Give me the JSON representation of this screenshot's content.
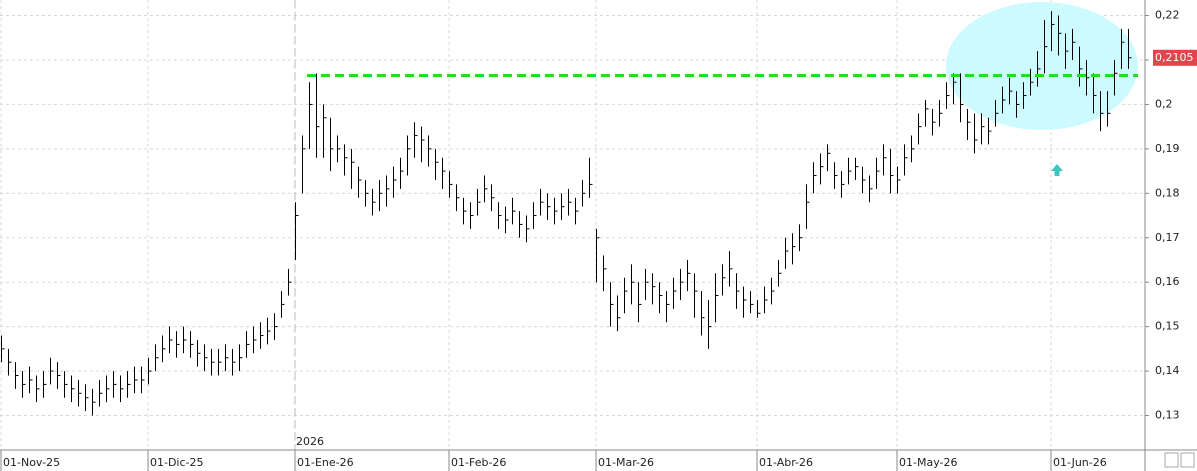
{
  "chart_data": {
    "type": "ohlc",
    "ylim": [
      0.1235,
      0.2235
    ],
    "yticks": [
      {
        "value": 0.13,
        "label": "0,13"
      },
      {
        "value": 0.14,
        "label": "0,14"
      },
      {
        "value": 0.15,
        "label": "0,15"
      },
      {
        "value": 0.16,
        "label": "0,16"
      },
      {
        "value": 0.17,
        "label": "0,17"
      },
      {
        "value": 0.18,
        "label": "0,18"
      },
      {
        "value": 0.19,
        "label": "0,19"
      },
      {
        "value": 0.2,
        "label": "0,2"
      },
      {
        "value": 0.21,
        "label": "0,21"
      },
      {
        "value": 0.22,
        "label": "0,22"
      }
    ],
    "xticks": [
      {
        "value": 0,
        "label": "01-Nov-25"
      },
      {
        "value": 21,
        "label": "01-Dic-25"
      },
      {
        "value": 42,
        "label": "01-Ene-26"
      },
      {
        "value": 64,
        "label": "01-Feb-26"
      },
      {
        "value": 85,
        "label": "01-Mar-26"
      },
      {
        "value": 108,
        "label": "01-Abr-26"
      },
      {
        "value": 128,
        "label": "01-May-26"
      },
      {
        "value": 150,
        "label": "01-Jun-26"
      }
    ],
    "year_marker": {
      "value": 42,
      "label": "2026"
    },
    "grid": true,
    "color": "#000000",
    "level_line": {
      "value": 0.2065,
      "color": "#22dd22"
    },
    "last_label": {
      "value": 0.2105,
      "label": "0,2105",
      "color": "#e0474c"
    },
    "high": [
      0.148,
      0.145,
      0.142,
      0.14,
      0.141,
      0.139,
      0.14,
      0.143,
      0.142,
      0.14,
      0.139,
      0.138,
      0.137,
      0.136,
      0.138,
      0.139,
      0.14,
      0.139,
      0.14,
      0.141,
      0.141,
      0.143,
      0.146,
      0.148,
      0.15,
      0.149,
      0.15,
      0.149,
      0.147,
      0.146,
      0.145,
      0.145,
      0.146,
      0.145,
      0.146,
      0.149,
      0.15,
      0.151,
      0.152,
      0.153,
      0.158,
      0.163,
      0.178,
      0.193,
      0.205,
      0.207,
      0.2,
      0.197,
      0.193,
      0.191,
      0.19,
      0.186,
      0.183,
      0.181,
      0.183,
      0.184,
      0.186,
      0.188,
      0.193,
      0.196,
      0.195,
      0.193,
      0.19,
      0.188,
      0.185,
      0.182,
      0.179,
      0.178,
      0.181,
      0.184,
      0.182,
      0.178,
      0.177,
      0.179,
      0.176,
      0.175,
      0.178,
      0.181,
      0.18,
      0.179,
      0.18,
      0.181,
      0.179,
      0.183,
      0.188,
      0.172,
      0.166,
      0.16,
      0.157,
      0.161,
      0.164,
      0.16,
      0.163,
      0.162,
      0.16,
      0.158,
      0.161,
      0.163,
      0.165,
      0.162,
      0.158,
      0.156,
      0.162,
      0.164,
      0.167,
      0.162,
      0.159,
      0.158,
      0.156,
      0.159,
      0.161,
      0.165,
      0.17,
      0.171,
      0.173,
      0.182,
      0.187,
      0.189,
      0.191,
      0.187,
      0.185,
      0.188,
      0.188,
      0.186,
      0.184,
      0.188,
      0.191,
      0.19,
      0.186,
      0.191,
      0.193,
      0.198,
      0.201,
      0.199,
      0.201,
      0.205,
      0.207,
      0.207,
      0.199,
      0.198,
      0.198,
      0.197,
      0.201,
      0.204,
      0.206,
      0.203,
      0.205,
      0.208,
      0.212,
      0.219,
      0.221,
      0.22,
      0.216,
      0.217,
      0.213,
      0.21,
      0.207,
      0.203,
      0.203,
      0.21,
      0.217,
      0.217
    ],
    "low": [
      0.142,
      0.139,
      0.136,
      0.134,
      0.135,
      0.133,
      0.134,
      0.137,
      0.136,
      0.134,
      0.133,
      0.132,
      0.131,
      0.13,
      0.132,
      0.133,
      0.134,
      0.133,
      0.134,
      0.135,
      0.135,
      0.137,
      0.14,
      0.142,
      0.144,
      0.143,
      0.144,
      0.143,
      0.141,
      0.14,
      0.139,
      0.139,
      0.14,
      0.139,
      0.14,
      0.143,
      0.144,
      0.145,
      0.146,
      0.147,
      0.152,
      0.157,
      0.165,
      0.18,
      0.19,
      0.188,
      0.188,
      0.185,
      0.187,
      0.184,
      0.181,
      0.179,
      0.177,
      0.175,
      0.176,
      0.177,
      0.179,
      0.181,
      0.184,
      0.188,
      0.187,
      0.186,
      0.183,
      0.181,
      0.179,
      0.176,
      0.173,
      0.172,
      0.175,
      0.178,
      0.176,
      0.172,
      0.171,
      0.173,
      0.17,
      0.169,
      0.172,
      0.175,
      0.174,
      0.173,
      0.174,
      0.175,
      0.173,
      0.177,
      0.179,
      0.16,
      0.158,
      0.15,
      0.149,
      0.153,
      0.155,
      0.151,
      0.156,
      0.155,
      0.153,
      0.151,
      0.154,
      0.156,
      0.158,
      0.152,
      0.148,
      0.145,
      0.151,
      0.157,
      0.159,
      0.154,
      0.152,
      0.153,
      0.152,
      0.153,
      0.155,
      0.159,
      0.163,
      0.164,
      0.167,
      0.172,
      0.18,
      0.182,
      0.185,
      0.181,
      0.179,
      0.182,
      0.183,
      0.18,
      0.178,
      0.181,
      0.184,
      0.18,
      0.18,
      0.184,
      0.187,
      0.191,
      0.195,
      0.193,
      0.195,
      0.199,
      0.2,
      0.196,
      0.192,
      0.189,
      0.191,
      0.191,
      0.195,
      0.198,
      0.2,
      0.197,
      0.199,
      0.202,
      0.204,
      0.207,
      0.212,
      0.211,
      0.208,
      0.21,
      0.204,
      0.202,
      0.198,
      0.194,
      0.195,
      0.202,
      0.208,
      0.208
    ],
    "close": [
      0.145,
      0.142,
      0.139,
      0.137,
      0.138,
      0.136,
      0.137,
      0.14,
      0.139,
      0.137,
      0.136,
      0.135,
      0.134,
      0.133,
      0.135,
      0.136,
      0.137,
      0.136,
      0.137,
      0.138,
      0.138,
      0.14,
      0.143,
      0.145,
      0.147,
      0.146,
      0.147,
      0.146,
      0.144,
      0.143,
      0.142,
      0.142,
      0.143,
      0.142,
      0.143,
      0.146,
      0.147,
      0.148,
      0.149,
      0.15,
      0.155,
      0.16,
      0.175,
      0.19,
      0.2,
      0.195,
      0.197,
      0.19,
      0.19,
      0.188,
      0.187,
      0.183,
      0.18,
      0.178,
      0.18,
      0.181,
      0.183,
      0.185,
      0.19,
      0.193,
      0.192,
      0.19,
      0.187,
      0.185,
      0.182,
      0.179,
      0.176,
      0.175,
      0.178,
      0.181,
      0.179,
      0.175,
      0.174,
      0.176,
      0.173,
      0.172,
      0.175,
      0.178,
      0.177,
      0.176,
      0.177,
      0.178,
      0.176,
      0.18,
      0.182,
      0.17,
      0.163,
      0.155,
      0.152,
      0.158,
      0.16,
      0.155,
      0.16,
      0.159,
      0.157,
      0.155,
      0.158,
      0.16,
      0.162,
      0.158,
      0.152,
      0.15,
      0.157,
      0.161,
      0.163,
      0.158,
      0.156,
      0.155,
      0.153,
      0.156,
      0.158,
      0.162,
      0.167,
      0.168,
      0.17,
      0.178,
      0.184,
      0.186,
      0.189,
      0.184,
      0.182,
      0.185,
      0.186,
      0.183,
      0.181,
      0.185,
      0.188,
      0.184,
      0.183,
      0.188,
      0.19,
      0.195,
      0.199,
      0.196,
      0.198,
      0.202,
      0.205,
      0.2,
      0.196,
      0.192,
      0.195,
      0.194,
      0.198,
      0.201,
      0.203,
      0.2,
      0.202,
      0.205,
      0.208,
      0.213,
      0.218,
      0.216,
      0.212,
      0.214,
      0.208,
      0.206,
      0.202,
      0.198,
      0.198,
      0.207,
      0.214,
      0.2105
    ]
  }
}
